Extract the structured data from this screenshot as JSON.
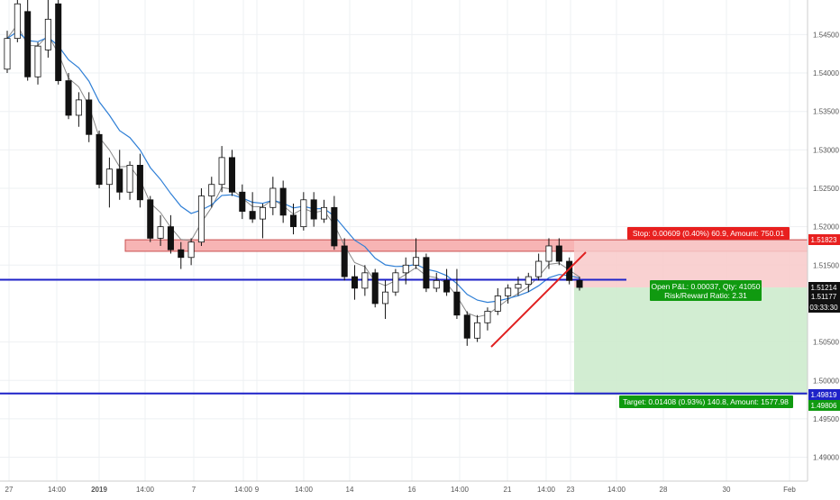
{
  "chart_data": {
    "type": "candlestick",
    "title": "",
    "xlabel": "",
    "ylabel": "",
    "ylim": [
      1.4869,
      1.5495
    ],
    "y_ticks": [
      "1.54500",
      "1.54000",
      "1.53500",
      "1.53000",
      "1.52500",
      "1.52000",
      "1.51500",
      "1.50500",
      "1.50000",
      "1.49500",
      "1.49000"
    ],
    "x_ticks": [
      "27",
      "14:00",
      "2019",
      "14:00",
      "7",
      "14:00",
      "9",
      "14:00",
      "14",
      "16",
      "14:00",
      "21",
      "14:00",
      "23",
      "14:00",
      "28",
      "30",
      "Feb"
    ],
    "candles": [
      {
        "o": 1.5405,
        "h": 1.5455,
        "l": 1.54,
        "c": 1.5445
      },
      {
        "o": 1.5445,
        "h": 1.5495,
        "l": 1.544,
        "c": 1.549
      },
      {
        "o": 1.548,
        "h": 1.5495,
        "l": 1.539,
        "c": 1.5395
      },
      {
        "o": 1.5395,
        "h": 1.544,
        "l": 1.5385,
        "c": 1.5435
      },
      {
        "o": 1.543,
        "h": 1.5495,
        "l": 1.542,
        "c": 1.547
      },
      {
        "o": 1.549,
        "h": 1.5495,
        "l": 1.5385,
        "c": 1.539
      },
      {
        "o": 1.539,
        "h": 1.54,
        "l": 1.534,
        "c": 1.5345
      },
      {
        "o": 1.5345,
        "h": 1.5375,
        "l": 1.533,
        "c": 1.5365
      },
      {
        "o": 1.5365,
        "h": 1.5375,
        "l": 1.531,
        "c": 1.532
      },
      {
        "o": 1.532,
        "h": 1.5325,
        "l": 1.525,
        "c": 1.5255
      },
      {
        "o": 1.5255,
        "h": 1.529,
        "l": 1.5225,
        "c": 1.5275
      },
      {
        "o": 1.5275,
        "h": 1.53,
        "l": 1.5235,
        "c": 1.5245
      },
      {
        "o": 1.5245,
        "h": 1.5285,
        "l": 1.5235,
        "c": 1.528
      },
      {
        "o": 1.528,
        "h": 1.5295,
        "l": 1.5225,
        "c": 1.5235
      },
      {
        "o": 1.5235,
        "h": 1.524,
        "l": 1.518,
        "c": 1.5185
      },
      {
        "o": 1.5185,
        "h": 1.5215,
        "l": 1.5175,
        "c": 1.52
      },
      {
        "o": 1.52,
        "h": 1.5215,
        "l": 1.5165,
        "c": 1.517
      },
      {
        "o": 1.517,
        "h": 1.518,
        "l": 1.5145,
        "c": 1.516
      },
      {
        "o": 1.516,
        "h": 1.5185,
        "l": 1.515,
        "c": 1.518
      },
      {
        "o": 1.518,
        "h": 1.525,
        "l": 1.5175,
        "c": 1.524
      },
      {
        "o": 1.524,
        "h": 1.5265,
        "l": 1.5225,
        "c": 1.5255
      },
      {
        "o": 1.5255,
        "h": 1.5305,
        "l": 1.5245,
        "c": 1.529
      },
      {
        "o": 1.529,
        "h": 1.53,
        "l": 1.524,
        "c": 1.5245
      },
      {
        "o": 1.5245,
        "h": 1.5255,
        "l": 1.521,
        "c": 1.522
      },
      {
        "o": 1.522,
        "h": 1.5245,
        "l": 1.5205,
        "c": 1.521
      },
      {
        "o": 1.521,
        "h": 1.523,
        "l": 1.5185,
        "c": 1.5225
      },
      {
        "o": 1.5225,
        "h": 1.5265,
        "l": 1.5215,
        "c": 1.525
      },
      {
        "o": 1.525,
        "h": 1.526,
        "l": 1.5205,
        "c": 1.5215
      },
      {
        "o": 1.5215,
        "h": 1.523,
        "l": 1.519,
        "c": 1.52
      },
      {
        "o": 1.52,
        "h": 1.5245,
        "l": 1.5195,
        "c": 1.5235
      },
      {
        "o": 1.5235,
        "h": 1.5245,
        "l": 1.52,
        "c": 1.521
      },
      {
        "o": 1.521,
        "h": 1.5235,
        "l": 1.5205,
        "c": 1.5225
      },
      {
        "o": 1.5225,
        "h": 1.524,
        "l": 1.517,
        "c": 1.5175
      },
      {
        "o": 1.5175,
        "h": 1.5185,
        "l": 1.513,
        "c": 1.5135
      },
      {
        "o": 1.5135,
        "h": 1.515,
        "l": 1.5105,
        "c": 1.512
      },
      {
        "o": 1.512,
        "h": 1.515,
        "l": 1.511,
        "c": 1.514
      },
      {
        "o": 1.514,
        "h": 1.5145,
        "l": 1.5095,
        "c": 1.51
      },
      {
        "o": 1.51,
        "h": 1.513,
        "l": 1.508,
        "c": 1.5115
      },
      {
        "o": 1.5115,
        "h": 1.5145,
        "l": 1.511,
        "c": 1.514
      },
      {
        "o": 1.514,
        "h": 1.516,
        "l": 1.5125,
        "c": 1.515
      },
      {
        "o": 1.515,
        "h": 1.5185,
        "l": 1.5145,
        "c": 1.516
      },
      {
        "o": 1.516,
        "h": 1.5165,
        "l": 1.5115,
        "c": 1.512
      },
      {
        "o": 1.512,
        "h": 1.514,
        "l": 1.5115,
        "c": 1.513
      },
      {
        "o": 1.513,
        "h": 1.5145,
        "l": 1.511,
        "c": 1.5115
      },
      {
        "o": 1.5115,
        "h": 1.5145,
        "l": 1.508,
        "c": 1.5085
      },
      {
        "o": 1.5085,
        "h": 1.509,
        "l": 1.5045,
        "c": 1.5055
      },
      {
        "o": 1.5055,
        "h": 1.5085,
        "l": 1.505,
        "c": 1.5075
      },
      {
        "o": 1.5075,
        "h": 1.5095,
        "l": 1.5065,
        "c": 1.509
      },
      {
        "o": 1.509,
        "h": 1.512,
        "l": 1.5085,
        "c": 1.511
      },
      {
        "o": 1.511,
        "h": 1.5125,
        "l": 1.51,
        "c": 1.512
      },
      {
        "o": 1.512,
        "h": 1.5135,
        "l": 1.511,
        "c": 1.5125
      },
      {
        "o": 1.5125,
        "h": 1.514,
        "l": 1.5115,
        "c": 1.5135
      },
      {
        "o": 1.5135,
        "h": 1.5165,
        "l": 1.513,
        "c": 1.5155
      },
      {
        "o": 1.5155,
        "h": 1.5185,
        "l": 1.5145,
        "c": 1.5175
      },
      {
        "o": 1.5175,
        "h": 1.5185,
        "l": 1.515,
        "c": 1.5155
      },
      {
        "o": 1.5155,
        "h": 1.516,
        "l": 1.5125,
        "c": 1.513
      },
      {
        "o": 1.513,
        "h": 1.5135,
        "l": 1.5117,
        "c": 1.5121
      }
    ],
    "ema_fast_color": "#888888",
    "ema_slow_color": "#2f7fd6",
    "resistance_zone": {
      "top": 1.5183,
      "bottom": 1.5168,
      "color": "#f7b4b4"
    },
    "horizontal_lines": [
      1.5131,
      1.4983
    ],
    "horizontal_line_color": "#1e22c8",
    "trendline_color": "#e02020",
    "position": {
      "entry": 1.5121,
      "stop": 1.5182,
      "target": 1.4981,
      "stop_color": "#f8c9c9",
      "target_color": "#cdebcd"
    },
    "labels": {
      "stop": "Stop: 0.00609 (0.40%) 60.9, Amount: 750.01",
      "open": "Open P&L: 0.00037, Qty: 41050",
      "risk_reward": "Risk/Reward Ratio: 2.31",
      "target": "Target: 0.01408 (0.93%) 140.8, Amount: 1577.98"
    },
    "price_tags": [
      {
        "text": "1.51823",
        "color": "#e8201f"
      },
      {
        "text": "1.51214",
        "color": "#111111"
      },
      {
        "text": "1.51177",
        "color": "#111111"
      },
      {
        "text": "03:33:30",
        "color": "#111111"
      },
      {
        "text": "1.49819",
        "color": "#1e22c8"
      },
      {
        "text": "1.49806",
        "color": "#109a10"
      }
    ],
    "colors": {
      "bull": "#ffffff",
      "bear": "#111111",
      "wick": "#111111",
      "stop_label": "#e8201f",
      "target_label": "#109a10"
    }
  }
}
